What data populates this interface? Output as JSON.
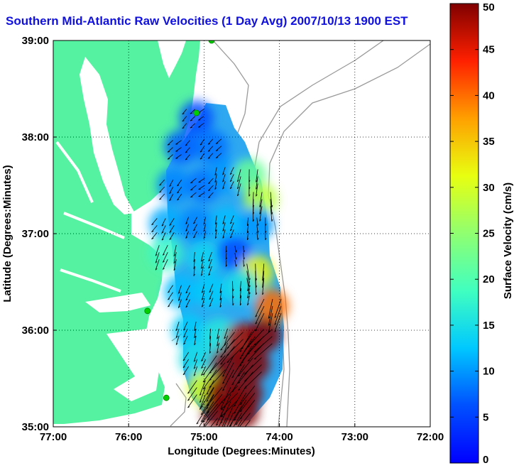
{
  "title": "Southern Mid-Atlantic Raw Velocities (1 Day Avg) 2007/10/13 1900 EST",
  "chart_data": {
    "type": "heatmap",
    "title": "Southern Mid-Atlantic Raw Velocities (1 Day Avg) 2007/10/13 1900 EST",
    "xlabel": "Longitude (Degrees:Minutes)",
    "ylabel": "Latitude (Degrees:Minutes)",
    "xlim": [
      -77,
      -72
    ],
    "ylim": [
      35,
      39
    ],
    "x_ticks": [
      {
        "value": -77,
        "label": "77:00"
      },
      {
        "value": -76,
        "label": "76:00"
      },
      {
        "value": -75,
        "label": "75:00"
      },
      {
        "value": -74,
        "label": "74:00"
      },
      {
        "value": -73,
        "label": "73:00"
      },
      {
        "value": -72,
        "label": "72:00"
      }
    ],
    "y_ticks": [
      {
        "value": 35,
        "label": "35:00"
      },
      {
        "value": 36,
        "label": "36:00"
      },
      {
        "value": 37,
        "label": "37:00"
      },
      {
        "value": 38,
        "label": "38:00"
      },
      {
        "value": 39,
        "label": "39:00"
      }
    ],
    "grid": true,
    "colorbar": {
      "label": "Surface Velocity (cm/s)",
      "range": [
        0,
        50
      ],
      "ticks": [
        0,
        5,
        10,
        15,
        20,
        25,
        30,
        35,
        40,
        45,
        50
      ],
      "colormap": "jet"
    },
    "colors": {
      "land": "#55f2a2",
      "water": "#ffffff",
      "bathymetry": "#9a9a9a",
      "site": "#00d000",
      "arrow": "#000000"
    },
    "radar_sites": [
      {
        "lon": -74.9,
        "lat": 39.0
      },
      {
        "lon": -75.1,
        "lat": 38.25
      },
      {
        "lon": -75.75,
        "lat": 36.2
      },
      {
        "lon": -75.5,
        "lat": 35.3
      }
    ],
    "velocity_field": [
      {
        "lon": -75.1,
        "lat": 38.2,
        "speed": 6,
        "dir": 230
      },
      {
        "lon": -75.3,
        "lat": 37.9,
        "speed": 7,
        "dir": 225
      },
      {
        "lon": -74.9,
        "lat": 37.9,
        "speed": 8,
        "dir": 220
      },
      {
        "lon": -75.4,
        "lat": 37.5,
        "speed": 9,
        "dir": 215
      },
      {
        "lon": -75.0,
        "lat": 37.5,
        "speed": 8,
        "dir": 230
      },
      {
        "lon": -74.7,
        "lat": 37.6,
        "speed": 10,
        "dir": 200
      },
      {
        "lon": -74.4,
        "lat": 37.6,
        "speed": 22,
        "dir": 190
      },
      {
        "lon": -74.25,
        "lat": 37.35,
        "speed": 28,
        "dir": 185
      },
      {
        "lon": -75.5,
        "lat": 37.1,
        "speed": 11,
        "dir": 210
      },
      {
        "lon": -75.1,
        "lat": 37.1,
        "speed": 9,
        "dir": 200
      },
      {
        "lon": -74.7,
        "lat": 37.1,
        "speed": 12,
        "dir": 195
      },
      {
        "lon": -74.3,
        "lat": 37.1,
        "speed": 10,
        "dir": 180
      },
      {
        "lon": -75.5,
        "lat": 36.8,
        "speed": 18,
        "dir": 200
      },
      {
        "lon": -75.0,
        "lat": 36.75,
        "speed": 14,
        "dir": 195
      },
      {
        "lon": -74.6,
        "lat": 36.8,
        "speed": 6,
        "dir": 180
      },
      {
        "lon": -74.3,
        "lat": 36.6,
        "speed": 32,
        "dir": 175
      },
      {
        "lon": -75.3,
        "lat": 36.4,
        "speed": 12,
        "dir": 205
      },
      {
        "lon": -74.9,
        "lat": 36.4,
        "speed": 13,
        "dir": 195
      },
      {
        "lon": -74.5,
        "lat": 36.45,
        "speed": 15,
        "dir": 185
      },
      {
        "lon": -74.1,
        "lat": 36.25,
        "speed": 40,
        "dir": 200
      },
      {
        "lon": -75.2,
        "lat": 36.0,
        "speed": 13,
        "dir": 200
      },
      {
        "lon": -74.8,
        "lat": 35.95,
        "speed": 16,
        "dir": 195
      },
      {
        "lon": -74.5,
        "lat": 35.9,
        "speed": 48,
        "dir": 215
      },
      {
        "lon": -74.2,
        "lat": 35.95,
        "speed": 50,
        "dir": 220
      },
      {
        "lon": -75.1,
        "lat": 35.7,
        "speed": 15,
        "dir": 205
      },
      {
        "lon": -74.7,
        "lat": 35.65,
        "speed": 50,
        "dir": 215
      },
      {
        "lon": -74.35,
        "lat": 35.65,
        "speed": 50,
        "dir": 220
      },
      {
        "lon": -75.0,
        "lat": 35.4,
        "speed": 30,
        "dir": 210
      },
      {
        "lon": -74.75,
        "lat": 35.35,
        "speed": 50,
        "dir": 215
      },
      {
        "lon": -74.45,
        "lat": 35.35,
        "speed": 50,
        "dir": 215
      },
      {
        "lon": -74.8,
        "lat": 35.15,
        "speed": 50,
        "dir": 210
      },
      {
        "lon": -74.5,
        "lat": 35.15,
        "speed": 50,
        "dir": 210
      }
    ]
  }
}
